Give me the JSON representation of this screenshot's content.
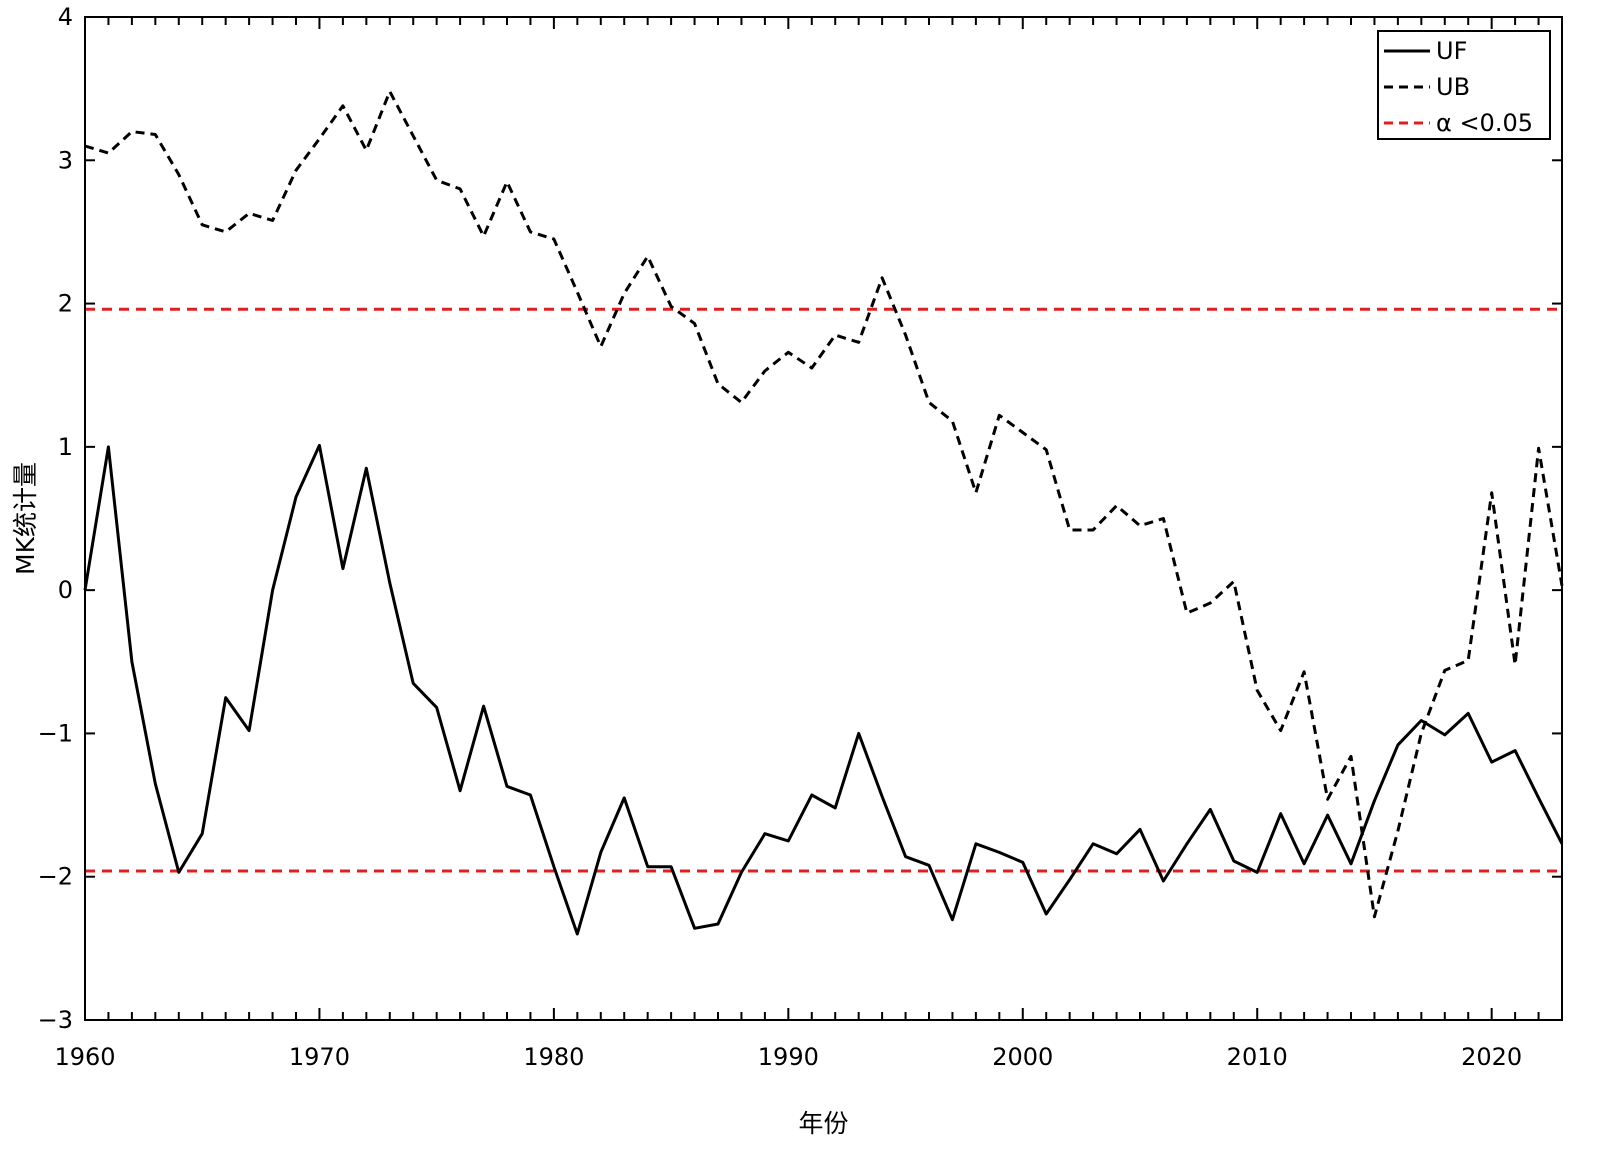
{
  "chart_data": {
    "type": "line",
    "title": "",
    "xlabel": "年份",
    "ylabel": "MK统计量",
    "xlim": [
      1960,
      2023
    ],
    "ylim": [
      -3,
      4
    ],
    "xticks": [
      1960,
      1970,
      1980,
      1990,
      2000,
      2010,
      2020
    ],
    "yticks": [
      -3,
      -2,
      -1,
      0,
      1,
      2,
      3,
      4
    ],
    "ytick_labels": [
      "−3",
      "−2",
      "−1",
      "0",
      "1",
      "2",
      "3",
      "4"
    ],
    "grid": false,
    "legend_position": "top-right",
    "x": [
      1960,
      1961,
      1962,
      1963,
      1964,
      1965,
      1966,
      1967,
      1968,
      1969,
      1970,
      1971,
      1972,
      1973,
      1974,
      1975,
      1976,
      1977,
      1978,
      1979,
      1980,
      1981,
      1982,
      1983,
      1984,
      1985,
      1986,
      1987,
      1988,
      1989,
      1990,
      1991,
      1992,
      1993,
      1994,
      1995,
      1996,
      1997,
      1998,
      1999,
      2000,
      2001,
      2002,
      2003,
      2004,
      2005,
      2006,
      2007,
      2008,
      2009,
      2010,
      2011,
      2012,
      2013,
      2014,
      2015,
      2016,
      2017,
      2018,
      2019,
      2020,
      2021,
      2022,
      2023
    ],
    "series": [
      {
        "name": "UF",
        "style": "solid",
        "color": "#000000",
        "values": [
          0,
          1.0,
          -0.5,
          -1.35,
          -1.97,
          -1.7,
          -0.75,
          -0.98,
          0,
          0.65,
          1.01,
          0.15,
          0.85,
          0.05,
          -0.65,
          -0.82,
          -1.4,
          -0.81,
          -1.37,
          -1.43,
          -1.93,
          -2.4,
          -1.83,
          -1.45,
          -1.93,
          -1.93,
          -2.36,
          -2.33,
          -1.97,
          -1.7,
          -1.75,
          -1.43,
          -1.52,
          -1.0,
          -1.44,
          -1.86,
          -1.92,
          -2.3,
          -1.77,
          -1.83,
          -1.9,
          -2.26,
          -2.02,
          -1.77,
          -1.84,
          -1.67,
          -2.03,
          -1.77,
          -1.53,
          -1.89,
          -1.97,
          -1.56,
          -1.91,
          -1.57,
          -1.91,
          -1.47,
          -1.08,
          -0.91,
          -1.01,
          -0.86,
          -1.2,
          -1.12,
          -1.45,
          -1.77
        ]
      },
      {
        "name": "UB",
        "style": "dashed",
        "color": "#000000",
        "values": [
          3.1,
          3.05,
          3.2,
          3.18,
          2.9,
          2.55,
          2.5,
          2.63,
          2.58,
          2.93,
          3.15,
          3.38,
          3.07,
          3.48,
          3.17,
          2.86,
          2.8,
          2.47,
          2.85,
          2.5,
          2.45,
          2.08,
          1.7,
          2.07,
          2.33,
          1.98,
          1.86,
          1.44,
          1.31,
          1.53,
          1.66,
          1.55,
          1.78,
          1.73,
          2.18,
          1.78,
          1.31,
          1.18,
          0.68,
          1.22,
          1.1,
          0.98,
          0.42,
          0.42,
          0.59,
          0.45,
          0.5,
          -0.16,
          -0.09,
          0.06,
          -0.7,
          -0.98,
          -0.57,
          -1.46,
          -1.16,
          -2.28,
          -1.68,
          -1.0,
          -0.56,
          -0.49,
          0.68,
          -0.52,
          0.99,
          0.03
        ]
      },
      {
        "name": "α <0.05",
        "style": "dashed",
        "color": "#e02020",
        "values_upper": 1.96,
        "values_lower": -1.96
      }
    ]
  }
}
